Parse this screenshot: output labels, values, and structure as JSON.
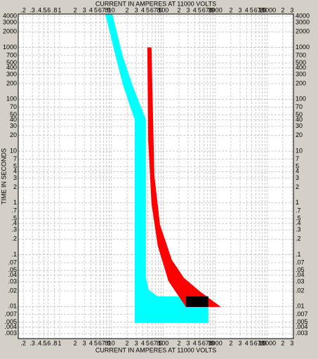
{
  "chart_data": {
    "type": "area",
    "title": "CURRENT IN AMPERES AT 11000 VOLTS",
    "xlabel": "CURRENT IN AMPERES AT 11000 VOLTS",
    "ylabel": "TIME IN SECONDS",
    "xscale": "log",
    "yscale": "log",
    "grid": true,
    "xlim": [
      0.16,
      32000
    ],
    "ylim": [
      0.0024,
      4400
    ],
    "xticks": [
      {
        "value": 0.2,
        "label": ".2"
      },
      {
        "value": 0.3,
        "label": ".3"
      },
      {
        "value": 0.4,
        "label": ".4"
      },
      {
        "value": 0.5,
        "label": ".5"
      },
      {
        "value": 0.6,
        "label": ".6"
      },
      {
        "value": 0.8,
        "label": ".8"
      },
      1,
      2,
      3,
      4,
      5,
      6,
      7,
      8,
      9,
      10,
      {
        "value": 20,
        "label": "2"
      },
      {
        "value": 30,
        "label": "3"
      },
      {
        "value": 40,
        "label": "4"
      },
      {
        "value": 50,
        "label": "5"
      },
      {
        "value": 60,
        "label": "6"
      },
      {
        "value": 70,
        "label": "7"
      },
      {
        "value": 80,
        "label": "8"
      },
      {
        "value": 90,
        "label": "9"
      },
      100,
      {
        "value": 200,
        "label": "2"
      },
      {
        "value": 300,
        "label": "3"
      },
      {
        "value": 400,
        "label": "4"
      },
      {
        "value": 500,
        "label": "5"
      },
      {
        "value": 600,
        "label": "6"
      },
      {
        "value": 700,
        "label": "7"
      },
      {
        "value": 800,
        "label": "8"
      },
      {
        "value": 900,
        "label": "9"
      },
      1000,
      {
        "value": 2000,
        "label": "2"
      },
      {
        "value": 3000,
        "label": "3"
      },
      {
        "value": 4000,
        "label": "4"
      },
      {
        "value": 5000,
        "label": "5"
      },
      {
        "value": 6000,
        "label": "6"
      },
      {
        "value": 7000,
        "label": "7"
      },
      {
        "value": 8000,
        "label": "8"
      },
      {
        "value": 9000,
        "label": "9"
      },
      10000,
      {
        "value": 20000,
        "label": "2"
      },
      {
        "value": 30000,
        "label": "3"
      }
    ],
    "yticks": [
      4000,
      3000,
      2000,
      1000,
      700,
      500,
      400,
      300,
      200,
      100,
      70,
      50,
      40,
      30,
      20,
      10,
      7,
      5,
      4,
      3,
      2,
      1,
      {
        "value": 0.7,
        "label": ".7"
      },
      {
        "value": 0.5,
        "label": ".5"
      },
      {
        "value": 0.4,
        "label": ".4"
      },
      {
        "value": 0.3,
        "label": ".3"
      },
      {
        "value": 0.2,
        "label": ".2"
      },
      {
        "value": 0.1,
        "label": ".1"
      },
      {
        "value": 0.07,
        "label": ".07"
      },
      {
        "value": 0.05,
        "label": ".05"
      },
      {
        "value": 0.04,
        "label": ".04"
      },
      {
        "value": 0.03,
        "label": ".03"
      },
      {
        "value": 0.02,
        "label": ".02"
      },
      {
        "value": 0.01,
        "label": ".01"
      },
      {
        "value": 0.007,
        "label": ".007"
      },
      {
        "value": 0.005,
        "label": ".005"
      },
      {
        "value": 0.004,
        "label": ".004"
      },
      {
        "value": 0.003,
        "label": ".003"
      }
    ],
    "series": [
      {
        "color": "#00ffff",
        "x": [
          7.6,
          12,
          16.5,
          22.5,
          28,
          28,
          735,
          735,
          78,
          52,
          46,
          46,
          36,
          25,
          16.5,
          10.4
        ],
        "values": [
          4400,
          680,
          195,
          76,
          41,
          0.0048,
          0.0048,
          0.0157,
          0.0157,
          0.021,
          0.036,
          41,
          76,
          195,
          680,
          4400
        ]
      },
      {
        "color": "#ff0000",
        "x": [
          59,
          67,
          86,
          146,
          247,
          506,
          1285,
          272,
          125,
          78,
          59,
          51,
          49
        ],
        "values": [
          1000,
          3.4,
          0.38,
          0.079,
          0.036,
          0.0195,
          0.0098,
          0.0098,
          0.031,
          0.148,
          0.96,
          16,
          1000
        ]
      },
      {
        "color": "#000000",
        "x": [
          272,
          735,
          735,
          272
        ],
        "values": [
          0.0157,
          0.0157,
          0.0098,
          0.0098
        ]
      }
    ]
  }
}
